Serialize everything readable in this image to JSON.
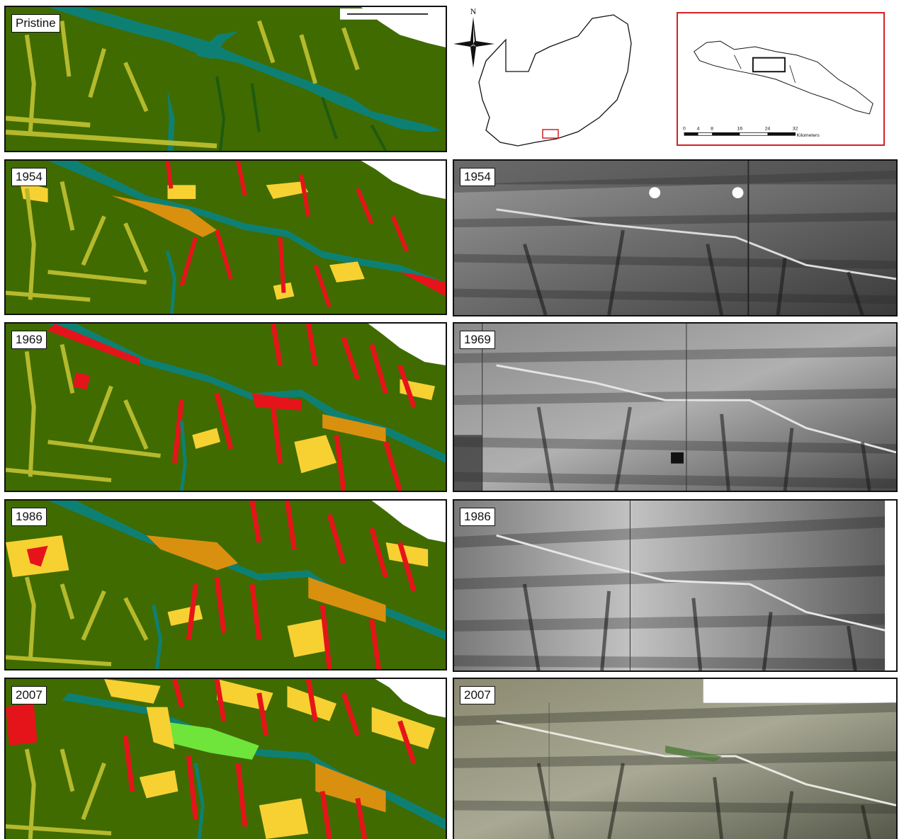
{
  "panels": {
    "pristine": "Pristine",
    "map_1954": "1954",
    "map_1969": "1969",
    "map_1986": "1986",
    "map_2007": "2007",
    "photo_1954": "1954",
    "photo_1969": "1969",
    "photo_1986": "1986",
    "photo_2007": "2007"
  },
  "locator": {
    "north": "N"
  },
  "inset": {
    "scale_ticks": [
      "0",
      "4",
      "8",
      "16",
      "24",
      "32"
    ],
    "scale_unit": "Kilometers"
  },
  "colors": {
    "background_green": "#3f6b00",
    "river_teal": "#0e8073",
    "drainage_yellow": "#b5b92c",
    "cultivated_yellow": "#f7d132",
    "degraded_red": "#e5141a",
    "orange": "#d9900f",
    "bright_green": "#6fe43a",
    "inset_frame_red": "#d42026"
  }
}
